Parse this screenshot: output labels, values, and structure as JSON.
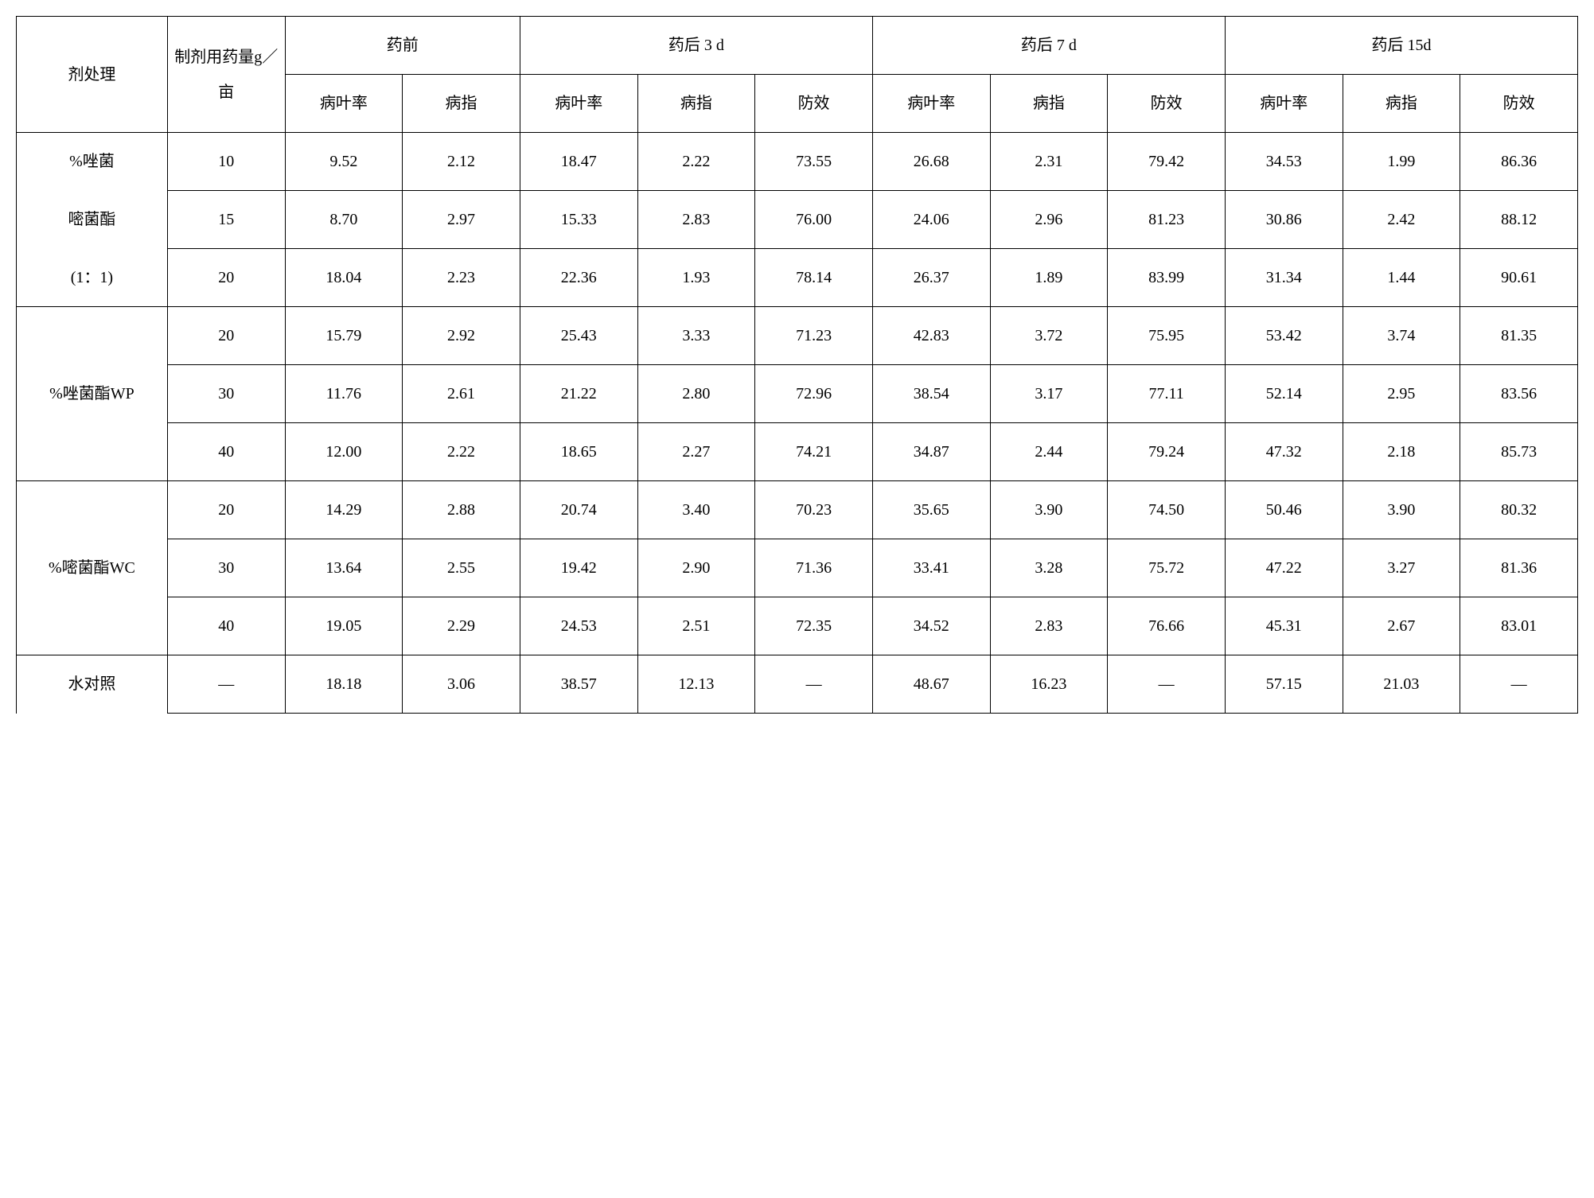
{
  "table": {
    "type": "table",
    "headers": {
      "treatment": "剂处理",
      "dose": "制剂用药量g／亩",
      "groups": [
        {
          "label": "药前",
          "subcols": [
            "病叶率",
            "病指"
          ]
        },
        {
          "label": "药后 3 d",
          "subcols": [
            "病叶率",
            "病指",
            "防效"
          ]
        },
        {
          "label": "药后 7 d",
          "subcols": [
            "病叶率",
            "病指",
            "防效"
          ]
        },
        {
          "label": "药后 15d",
          "subcols": [
            "病叶率",
            "病指",
            "防效"
          ]
        }
      ]
    },
    "treatments": [
      {
        "name_lines": [
          "%唑菌",
          "嘧菌酯",
          "(1：1)"
        ],
        "rows": [
          {
            "dose": "10",
            "vals": [
              "9.52",
              "2.12",
              "18.47",
              "2.22",
              "73.55",
              "26.68",
              "2.31",
              "79.42",
              "34.53",
              "1.99",
              "86.36"
            ]
          },
          {
            "dose": "15",
            "vals": [
              "8.70",
              "2.97",
              "15.33",
              "2.83",
              "76.00",
              "24.06",
              "2.96",
              "81.23",
              "30.86",
              "2.42",
              "88.12"
            ]
          },
          {
            "dose": "20",
            "vals": [
              "18.04",
              "2.23",
              "22.36",
              "1.93",
              "78.14",
              "26.37",
              "1.89",
              "83.99",
              "31.34",
              "1.44",
              "90.61"
            ]
          }
        ]
      },
      {
        "name_lines": [
          "%唑菌酯WP"
        ],
        "rows": [
          {
            "dose": "20",
            "vals": [
              "15.79",
              "2.92",
              "25.43",
              "3.33",
              "71.23",
              "42.83",
              "3.72",
              "75.95",
              "53.42",
              "3.74",
              "81.35"
            ]
          },
          {
            "dose": "30",
            "vals": [
              "11.76",
              "2.61",
              "21.22",
              "2.80",
              "72.96",
              "38.54",
              "3.17",
              "77.11",
              "52.14",
              "2.95",
              "83.56"
            ]
          },
          {
            "dose": "40",
            "vals": [
              "12.00",
              "2.22",
              "18.65",
              "2.27",
              "74.21",
              "34.87",
              "2.44",
              "79.24",
              "47.32",
              "2.18",
              "85.73"
            ]
          }
        ]
      },
      {
        "name_lines": [
          "%嘧菌酯WC"
        ],
        "rows": [
          {
            "dose": "20",
            "vals": [
              "14.29",
              "2.88",
              "20.74",
              "3.40",
              "70.23",
              "35.65",
              "3.90",
              "74.50",
              "50.46",
              "3.90",
              "80.32"
            ]
          },
          {
            "dose": "30",
            "vals": [
              "13.64",
              "2.55",
              "19.42",
              "2.90",
              "71.36",
              "33.41",
              "3.28",
              "75.72",
              "47.22",
              "3.27",
              "81.36"
            ]
          },
          {
            "dose": "40",
            "vals": [
              "19.05",
              "2.29",
              "24.53",
              "2.51",
              "72.35",
              "34.52",
              "2.83",
              "76.66",
              "45.31",
              "2.67",
              "83.01"
            ]
          }
        ]
      },
      {
        "name_lines": [
          "水对照"
        ],
        "rows": [
          {
            "dose": "—",
            "vals": [
              "18.18",
              "3.06",
              "38.57",
              "12.13",
              "—",
              "48.67",
              "16.23",
              "—",
              "57.15",
              "21.03",
              "—"
            ]
          }
        ]
      }
    ]
  }
}
